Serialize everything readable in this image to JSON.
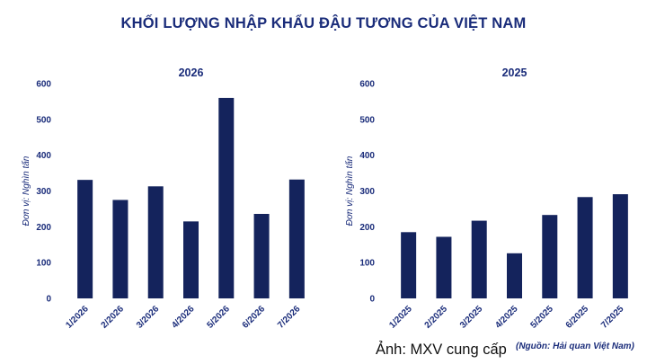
{
  "main_title": "KHỐI LƯỢNG NHẬP KHẨU ĐẬU TƯƠNG CỦA VIỆT NAM",
  "caption": "Ảnh: MXV cung cấp",
  "source": "(Nguồn: Hải quan Việt Nam)",
  "colors": {
    "bar": "#14235c",
    "text": "#1a2c7a"
  },
  "chart_data": [
    {
      "type": "bar",
      "title": "2026",
      "ylabel": "Đơn vị: Nghìn tấn",
      "xlabel": "",
      "categories": [
        "1/2026",
        "2/2026",
        "3/2026",
        "4/2026",
        "5/2026",
        "6/2026",
        "7/2026"
      ],
      "values": [
        331,
        275,
        313,
        215,
        560,
        236,
        332
      ],
      "ylim": [
        0,
        600
      ],
      "yticks": [
        0,
        100,
        200,
        300,
        400,
        500,
        600
      ],
      "grid": false
    },
    {
      "type": "bar",
      "title": "2025",
      "ylabel": "Đơn vị: Nghìn tấn",
      "xlabel": "",
      "categories": [
        "1/2025",
        "2/2025",
        "3/2025",
        "4/2025",
        "5/2025",
        "6/2025",
        "7/2025"
      ],
      "values": [
        185,
        172,
        217,
        126,
        233,
        283,
        291
      ],
      "ylim": [
        0,
        600
      ],
      "yticks": [
        0,
        100,
        200,
        300,
        400,
        500,
        600
      ],
      "grid": false
    }
  ]
}
